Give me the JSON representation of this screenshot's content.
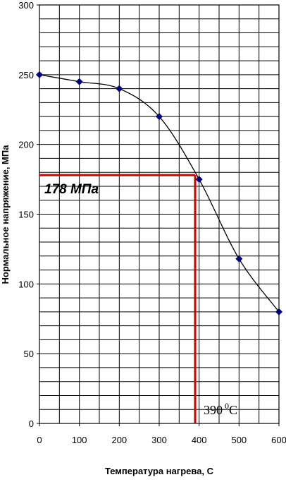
{
  "chart_data": {
    "type": "line",
    "title": "",
    "xlabel": "Температура нагрева, С",
    "ylabel": "Нормальное напряжение, МПа",
    "xlim": [
      0,
      600
    ],
    "ylim": [
      0,
      300
    ],
    "x_ticks": [
      0,
      100,
      200,
      300,
      400,
      500,
      600
    ],
    "y_ticks": [
      0,
      50,
      100,
      150,
      200,
      250,
      300
    ],
    "x_minor_step": 50,
    "y_minor_step": 10,
    "grid": true,
    "legend": "none",
    "series": [
      {
        "x": [
          0,
          100,
          200,
          300,
          400,
          500,
          600
        ],
        "y": [
          250,
          245,
          240,
          220,
          175,
          118,
          80
        ],
        "line_color": "#000000",
        "marker": "diamond",
        "marker_color": "#000080"
      }
    ],
    "annotations": {
      "stress_text": "178 МПа",
      "stress_value": 178,
      "temp_number": "390",
      "temp_superscript": "0",
      "temp_unit": "C",
      "temp_value": 390,
      "guide_color": "#d00000"
    }
  }
}
